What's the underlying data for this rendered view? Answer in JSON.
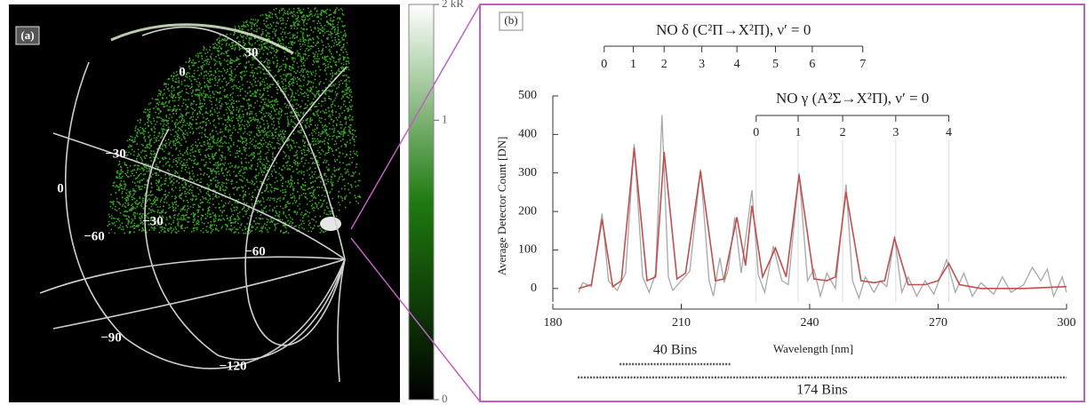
{
  "chart_data": [
    {
      "type": "image",
      "label": "(a)",
      "grid_labels": [
        "30",
        "0",
        "−30",
        "0",
        "−30",
        "−60",
        "−60",
        "−90",
        "−120"
      ],
      "colorbar": {
        "clim": [
          0,
          2
        ],
        "scale": "sqrt",
        "ticks": [
          0,
          1,
          {
            "value": 2,
            "label": "2 kR"
          }
        ],
        "colors": [
          "#000000",
          "#1f7a10",
          "#ffffff"
        ]
      }
    },
    {
      "type": "line",
      "label": "(b)",
      "xlabel": "Wavelength [nm]",
      "ylabel": "Average Detector Count [DN]",
      "xlim": [
        180,
        300
      ],
      "xticks": [
        180,
        210,
        240,
        270,
        300
      ],
      "ylim": [
        -35,
        500
      ],
      "yticks": [
        0,
        100,
        200,
        300,
        400,
        500
      ],
      "series": [
        {
          "color": "#a8a8a8",
          "x": [
            186,
            187,
            189,
            191.5,
            193,
            195,
            197,
            199,
            201,
            202.5,
            204,
            205.5,
            207,
            208,
            210,
            212,
            214.5,
            216.5,
            217.5,
            219,
            220,
            221,
            222.5,
            224,
            226.5,
            228,
            229.5,
            231.5,
            233.5,
            235,
            237.5,
            239.5,
            241,
            242.5,
            244,
            246,
            248.5,
            250,
            251.5,
            253,
            255,
            256.5,
            258,
            259.8,
            261.5,
            263,
            265,
            267,
            269,
            272,
            274,
            276,
            278,
            280,
            283,
            285,
            287,
            290,
            292,
            294,
            295.5,
            297,
            299,
            300
          ],
          "values": [
            -10,
            15,
            5,
            195,
            20,
            -5,
            40,
            375,
            30,
            -10,
            40,
            450,
            30,
            -5,
            20,
            45,
            310,
            20,
            -20,
            80,
            15,
            50,
            185,
            40,
            255,
            35,
            -10,
            110,
            20,
            10,
            300,
            20,
            50,
            -20,
            40,
            0,
            270,
            20,
            -25,
            30,
            -10,
            20,
            5,
            135,
            -10,
            30,
            -20,
            20,
            -15,
            75,
            -10,
            40,
            -20,
            15,
            -15,
            30,
            -10,
            10,
            55,
            20,
            50,
            -20,
            30,
            -10
          ]
        },
        {
          "color": "#c0504d",
          "x": [
            186,
            189,
            191.5,
            194,
            196,
            199,
            202,
            204,
            206,
            209,
            211,
            214.5,
            218,
            220,
            223,
            225,
            226.5,
            229,
            232,
            234.5,
            237.5,
            241,
            244,
            246,
            248.5,
            252,
            255,
            257.5,
            259.8,
            263,
            267,
            270,
            272.5,
            275,
            280,
            290,
            300
          ],
          "values": [
            0,
            10,
            180,
            5,
            20,
            365,
            20,
            30,
            355,
            25,
            40,
            305,
            20,
            25,
            185,
            60,
            215,
            30,
            105,
            30,
            295,
            25,
            20,
            30,
            250,
            20,
            15,
            20,
            130,
            10,
            10,
            20,
            65,
            10,
            0,
            0,
            5
          ]
        }
      ],
      "band_axes": [
        {
          "title": "NO δ (C²Π→X²Π), ν′ = 0",
          "levels": [
            0,
            1,
            2,
            3,
            4,
            5,
            6,
            7
          ],
          "x": [
            192,
            198.8,
            206,
            214.8,
            223,
            232,
            240.6,
            252.4
          ]
        },
        {
          "title": "NO γ (A²Σ→X²Π), ν′ = 0",
          "levels": [
            0,
            1,
            2,
            3,
            4
          ],
          "x": [
            227.5,
            237.3,
            247.7,
            260.1,
            272.5
          ]
        }
      ],
      "spans": [
        {
          "label": "40 Bins",
          "x": [
            195.6,
            221.5
          ]
        },
        {
          "label": "174 Bins",
          "x": [
            185.8,
            300
          ]
        }
      ]
    }
  ]
}
